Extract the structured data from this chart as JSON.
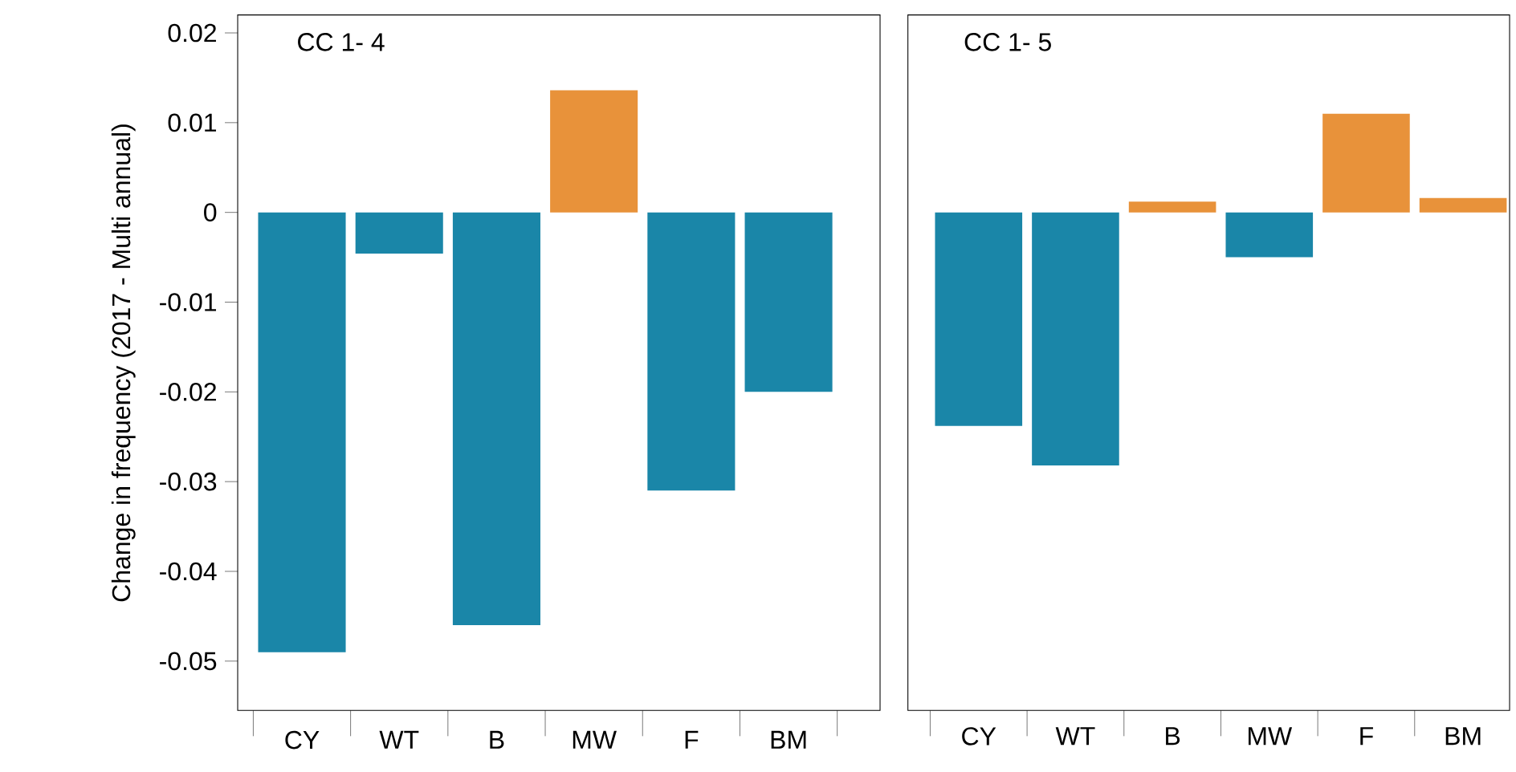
{
  "chart_data": [
    {
      "type": "bar",
      "annotations": [
        "CC 1- 4"
      ],
      "ylabel": "Change in frequency (2017 - Multi annual)",
      "categories": [
        "CY",
        "WT",
        "B",
        "MW",
        "F",
        "BM"
      ],
      "values": [
        -0.049,
        -0.0046,
        -0.046,
        0.0136,
        -0.031,
        -0.02
      ],
      "colors": [
        "#1a86a8",
        "#1a86a8",
        "#1a86a8",
        "#e8923a",
        "#1a86a8",
        "#1a86a8"
      ],
      "ylim": [
        -0.0555,
        0.022
      ],
      "yticks": [
        0.02,
        0.01,
        0,
        -0.01,
        -0.02,
        -0.03,
        -0.04,
        -0.05
      ]
    },
    {
      "type": "bar",
      "annotations": [
        "CC 1- 5"
      ],
      "categories": [
        "CY",
        "WT",
        "B",
        "MW",
        "F",
        "BM"
      ],
      "values": [
        -0.0238,
        -0.0282,
        0.0012,
        -0.005,
        0.011,
        0.0016
      ],
      "colors": [
        "#1a86a8",
        "#1a86a8",
        "#e8923a",
        "#1a86a8",
        "#e8923a",
        "#e8923a"
      ],
      "ylim": [
        -0.0555,
        0.022
      ],
      "yticks": [
        0.02,
        0.01,
        0,
        -0.01,
        -0.02,
        -0.03,
        -0.04,
        -0.05
      ],
      "tick_labels": "x"
    }
  ]
}
